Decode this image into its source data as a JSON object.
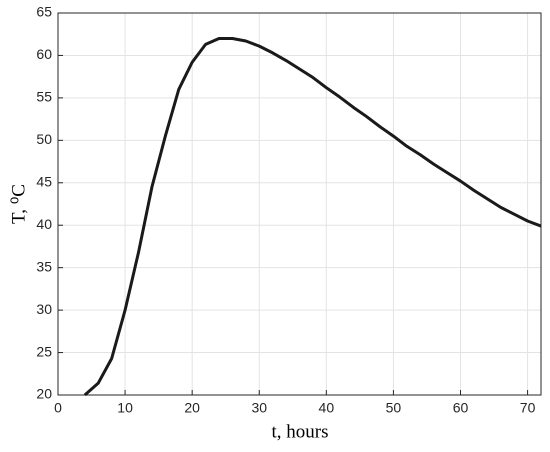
{
  "chart_data": {
    "type": "line",
    "xlabel": "t, hours",
    "ylabel": "T, ⁰C",
    "x": [
      4,
      6,
      8,
      10,
      12,
      14,
      16,
      18,
      20,
      22,
      24,
      26,
      28,
      30,
      32,
      34,
      36,
      38,
      40,
      42,
      44,
      46,
      48,
      50,
      52,
      54,
      56,
      58,
      60,
      62,
      64,
      66,
      68,
      70,
      72
    ],
    "series": [
      {
        "color": "#1a1a1a",
        "values": [
          20,
          21.4,
          24.3,
          30,
          36.8,
          44.5,
          50.5,
          56,
          59.2,
          61.3,
          62,
          62,
          61.7,
          61.1,
          60.3,
          59.4,
          58.4,
          57.4,
          56.2,
          55.1,
          53.9,
          52.8,
          51.6,
          50.5,
          49.3,
          48.3,
          47.2,
          46.2,
          45.2,
          44.1,
          43.1,
          42.1,
          41.3,
          40.5,
          39.9
        ]
      }
    ],
    "xlim": [
      0,
      72
    ],
    "ylim": [
      20,
      65
    ],
    "xticks": [
      0,
      10,
      20,
      30,
      40,
      50,
      60,
      70
    ],
    "yticks": [
      20,
      25,
      30,
      35,
      40,
      45,
      50,
      55,
      60,
      65
    ],
    "grid": true
  }
}
